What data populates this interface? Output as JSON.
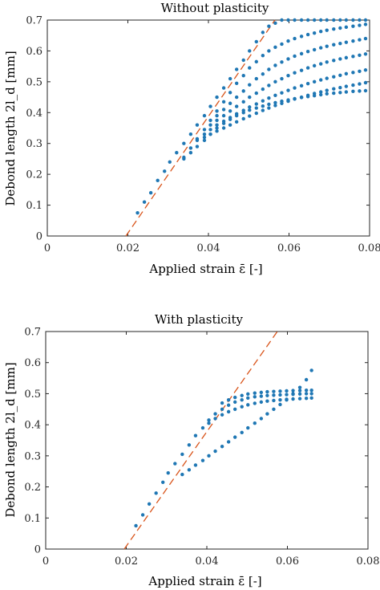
{
  "colors": {
    "points": "#1f77b4",
    "fit_line": "#d9541a",
    "axes": "#262626"
  },
  "chart_data": [
    {
      "type": "scatter",
      "title": "Without plasticity",
      "xlabel": "Applied strain ε̄ [-]",
      "ylabel": "Debond length 2l_d [mm]",
      "xlim": [
        0,
        0.08
      ],
      "ylim": [
        0,
        0.7
      ],
      "xticks": [
        0,
        0.02,
        0.04,
        0.06,
        0.08
      ],
      "xtick_labels": [
        "0",
        "0.02",
        "0.04",
        "0.06",
        "0.08"
      ],
      "yticks": [
        0,
        0.1,
        0.2,
        0.3,
        0.4,
        0.5,
        0.6,
        0.7
      ],
      "ytick_labels": [
        "0",
        "0.1",
        "0.2",
        "0.3",
        "0.4",
        "0.5",
        "0.6",
        "0.7"
      ],
      "grid": false,
      "reference_line": {
        "style": "dashed",
        "x": [
          0.0195,
          0.0565
        ],
        "y": [
          0,
          0.7
        ]
      },
      "series": [
        {
          "x": [
            0.0224,
            0.0241,
            0.0257,
            0.0274,
            0.0291,
            0.0304,
            0.0321,
            0.0339,
            0.0356,
            0.0372,
            0.039,
            0.0405,
            0.0421,
            0.0438,
            0.0454,
            0.047,
            0.0487,
            0.0502,
            0.0519,
            0.0535,
            0.055,
            0.0566,
            0.0582,
            0.0598,
            0.0614,
            0.0631,
            0.0647,
            0.0663,
            0.0679,
            0.0694,
            0.0711,
            0.0727,
            0.0742,
            0.0759,
            0.0775,
            0.079
          ],
          "y": [
            0.075,
            0.11,
            0.14,
            0.18,
            0.21,
            0.24,
            0.27,
            0.3,
            0.33,
            0.36,
            0.39,
            0.42,
            0.45,
            0.48,
            0.51,
            0.54,
            0.57,
            0.6,
            0.63,
            0.66,
            0.68,
            0.69,
            0.7,
            0.7,
            0.7,
            0.7,
            0.7,
            0.7,
            0.7,
            0.7,
            0.7,
            0.7,
            0.7,
            0.7,
            0.7,
            0.7
          ]
        },
        {
          "x": [
            0.0339,
            0.0356,
            0.0372,
            0.039,
            0.0405,
            0.0421,
            0.0438,
            0.0454,
            0.047,
            0.0487,
            0.0502,
            0.0519,
            0.0535,
            0.055,
            0.0566,
            0.0582,
            0.0598,
            0.0614,
            0.0631,
            0.0647,
            0.0663,
            0.0679,
            0.0694,
            0.0711,
            0.0727,
            0.0742,
            0.0759,
            0.0775,
            0.079
          ],
          "y": [
            0.255,
            0.285,
            0.315,
            0.345,
            0.375,
            0.405,
            0.435,
            0.465,
            0.495,
            0.52,
            0.545,
            0.565,
            0.585,
            0.6,
            0.612,
            0.622,
            0.632,
            0.64,
            0.647,
            0.653,
            0.658,
            0.663,
            0.667,
            0.671,
            0.674,
            0.677,
            0.68,
            0.683,
            0.686
          ]
        },
        {
          "x": [
            0.0421,
            0.0438,
            0.0454,
            0.047,
            0.0487,
            0.0502,
            0.0519,
            0.0535,
            0.055,
            0.0566,
            0.0582,
            0.0598,
            0.0614,
            0.0631,
            0.0647,
            0.0663,
            0.0679,
            0.0694,
            0.0711,
            0.0727,
            0.0742,
            0.0759,
            0.0775,
            0.079
          ],
          "y": [
            0.39,
            0.41,
            0.43,
            0.45,
            0.47,
            0.49,
            0.51,
            0.525,
            0.54,
            0.553,
            0.564,
            0.574,
            0.583,
            0.591,
            0.598,
            0.604,
            0.61,
            0.615,
            0.62,
            0.624,
            0.628,
            0.632,
            0.636,
            0.64
          ]
        },
        {
          "x": [
            0.0405,
            0.0421,
            0.0438,
            0.0454,
            0.047,
            0.0487,
            0.0502,
            0.0519,
            0.0535,
            0.055,
            0.0566,
            0.0582,
            0.0598,
            0.0614,
            0.0631,
            0.0647,
            0.0663,
            0.0679,
            0.0694,
            0.0711,
            0.0727,
            0.0742,
            0.0759,
            0.0775,
            0.079
          ],
          "y": [
            0.36,
            0.375,
            0.39,
            0.405,
            0.42,
            0.435,
            0.45,
            0.463,
            0.476,
            0.488,
            0.5,
            0.51,
            0.52,
            0.529,
            0.537,
            0.545,
            0.552,
            0.558,
            0.564,
            0.569,
            0.574,
            0.578,
            0.582,
            0.586,
            0.59
          ]
        },
        {
          "x": [
            0.039,
            0.0405,
            0.0421,
            0.0438,
            0.0454,
            0.047,
            0.0487,
            0.0502,
            0.0519,
            0.0535,
            0.055,
            0.0566,
            0.0582,
            0.0598,
            0.0614,
            0.0631,
            0.0647,
            0.0663,
            0.0679,
            0.0694,
            0.0711,
            0.0727,
            0.0742,
            0.0759,
            0.0775,
            0.079
          ],
          "y": [
            0.33,
            0.345,
            0.36,
            0.372,
            0.384,
            0.396,
            0.407,
            0.418,
            0.428,
            0.438,
            0.447,
            0.456,
            0.464,
            0.472,
            0.48,
            0.487,
            0.494,
            0.5,
            0.506,
            0.511,
            0.516,
            0.521,
            0.526,
            0.53,
            0.534,
            0.538
          ]
        },
        {
          "x": [
            0.0372,
            0.039,
            0.0405,
            0.0421,
            0.0438,
            0.0454,
            0.047,
            0.0487,
            0.0502,
            0.0519,
            0.0535,
            0.055,
            0.0566,
            0.0582,
            0.0598,
            0.0614,
            0.0631,
            0.0647,
            0.0663,
            0.0679,
            0.0694,
            0.0711,
            0.0727,
            0.0742,
            0.0759,
            0.0775,
            0.079
          ],
          "y": [
            0.31,
            0.32,
            0.33,
            0.34,
            0.35,
            0.36,
            0.37,
            0.38,
            0.389,
            0.398,
            0.407,
            0.415,
            0.423,
            0.43,
            0.437,
            0.444,
            0.45,
            0.456,
            0.462,
            0.467,
            0.472,
            0.477,
            0.481,
            0.485,
            0.489,
            0.493,
            0.497
          ]
        },
        {
          "x": [
            0.0339,
            0.0356,
            0.0372,
            0.039,
            0.0405,
            0.0421,
            0.0438,
            0.0454,
            0.047,
            0.0487,
            0.0502,
            0.0519,
            0.0535,
            0.055,
            0.0566,
            0.0582,
            0.0598,
            0.0614,
            0.0631,
            0.0647,
            0.0663,
            0.0679,
            0.0694,
            0.0711,
            0.0727,
            0.0742,
            0.0759,
            0.0775,
            0.079
          ],
          "y": [
            0.25,
            0.27,
            0.29,
            0.31,
            0.33,
            0.35,
            0.365,
            0.378,
            0.39,
            0.4,
            0.408,
            0.415,
            0.421,
            0.427,
            0.432,
            0.437,
            0.441,
            0.445,
            0.449,
            0.452,
            0.455,
            0.458,
            0.461,
            0.463,
            0.465,
            0.467,
            0.469,
            0.47,
            0.471
          ]
        }
      ]
    },
    {
      "type": "scatter",
      "title": "With plasticity",
      "xlabel": "Applied strain ε̄ [-]",
      "ylabel": "Debond length 2l_d [mm]",
      "xlim": [
        0,
        0.08
      ],
      "ylim": [
        0,
        0.7
      ],
      "xticks": [
        0,
        0.02,
        0.04,
        0.06,
        0.08
      ],
      "xtick_labels": [
        "0",
        "0.02",
        "0.04",
        "0.06",
        "0.08"
      ],
      "yticks": [
        0,
        0.1,
        0.2,
        0.3,
        0.4,
        0.5,
        0.6,
        0.7
      ],
      "ytick_labels": [
        "0",
        "0.1",
        "0.2",
        "0.3",
        "0.4",
        "0.5",
        "0.6",
        "0.7"
      ],
      "grid": false,
      "reference_line": {
        "style": "dashed",
        "x": [
          0.0195,
          0.0575
        ],
        "y": [
          0,
          0.7
        ]
      },
      "series": [
        {
          "x": [
            0.0224,
            0.0241,
            0.0257,
            0.0274,
            0.0291,
            0.0304,
            0.0321,
            0.0339,
            0.0356,
            0.0372,
            0.039,
            0.0405,
            0.0421,
            0.0438,
            0.0454,
            0.047,
            0.0487,
            0.0502,
            0.0519,
            0.0535,
            0.055,
            0.0566,
            0.0582,
            0.0598,
            0.0614,
            0.0631,
            0.0647,
            0.066
          ],
          "y": [
            0.075,
            0.11,
            0.145,
            0.18,
            0.215,
            0.245,
            0.275,
            0.305,
            0.335,
            0.365,
            0.39,
            0.415,
            0.435,
            0.45,
            0.463,
            0.473,
            0.48,
            0.486,
            0.49,
            0.492,
            0.494,
            0.495,
            0.496,
            0.497,
            0.498,
            0.499,
            0.5,
            0.5
          ]
        },
        {
          "x": [
            0.0405,
            0.0421,
            0.0438,
            0.0454,
            0.047,
            0.0487,
            0.0502,
            0.0519,
            0.0535,
            0.055,
            0.0566,
            0.0582,
            0.0598,
            0.0614,
            0.0631,
            0.0647,
            0.066
          ],
          "y": [
            0.405,
            0.42,
            0.432,
            0.442,
            0.45,
            0.458,
            0.464,
            0.469,
            0.473,
            0.476,
            0.478,
            0.48,
            0.482,
            0.483,
            0.484,
            0.485,
            0.486
          ]
        },
        {
          "x": [
            0.0438,
            0.0454,
            0.047,
            0.0487,
            0.0502,
            0.0519,
            0.0535,
            0.055,
            0.0566,
            0.0582,
            0.0598,
            0.0614,
            0.0631,
            0.0647,
            0.066
          ],
          "y": [
            0.47,
            0.48,
            0.488,
            0.494,
            0.499,
            0.502,
            0.504,
            0.506,
            0.507,
            0.508,
            0.509,
            0.51,
            0.51,
            0.511,
            0.511
          ]
        },
        {
          "x": [
            0.0339,
            0.0356,
            0.0372,
            0.039,
            0.0405,
            0.0421,
            0.0438,
            0.0454,
            0.047,
            0.0487,
            0.0502,
            0.0519,
            0.0535,
            0.055,
            0.0566,
            0.0582,
            0.0598,
            0.0614,
            0.0631,
            0.0647,
            0.066
          ],
          "y": [
            0.24,
            0.255,
            0.27,
            0.285,
            0.3,
            0.315,
            0.33,
            0.345,
            0.36,
            0.375,
            0.39,
            0.405,
            0.42,
            0.435,
            0.45,
            0.465,
            0.48,
            0.5,
            0.52,
            0.545,
            0.575
          ]
        }
      ]
    }
  ]
}
